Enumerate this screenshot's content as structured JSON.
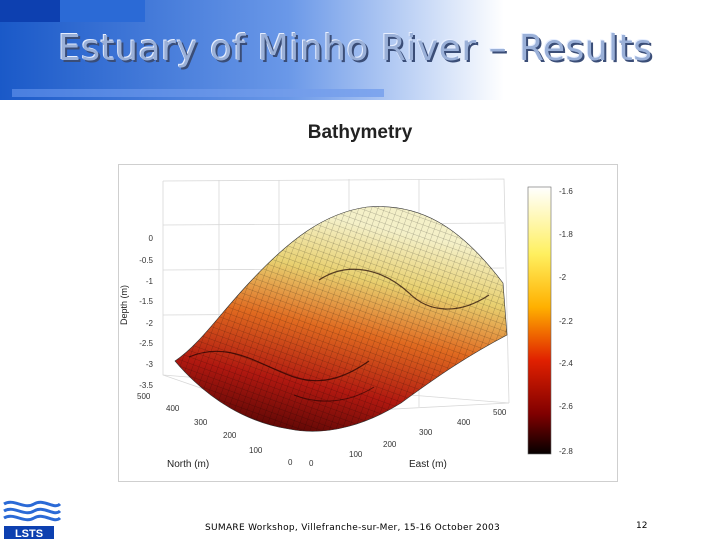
{
  "slide": {
    "title": "Estuary of Minho River – Results",
    "subtitle": "Bathymetry",
    "footer": "SUMARE Workshop, Villefranche-sur-Mer, 15-16 October 2003",
    "page_number": "12",
    "logo_text": "LSTS"
  },
  "chart_data": {
    "type": "surface",
    "zlabel": "Depth (m)",
    "xlabel": "North (m)",
    "ylabel": "East (m)",
    "z_ticks": [
      "0",
      "-0.5",
      "-1",
      "-1.5",
      "-2",
      "-2.5",
      "-3",
      "-3.5"
    ],
    "north_ticks": [
      "500",
      "400",
      "300",
      "200",
      "100",
      "0"
    ],
    "east_ticks": [
      "0",
      "100",
      "200",
      "300",
      "400",
      "500"
    ],
    "zlim": [
      -3.5,
      0
    ],
    "colorbar": {
      "ticks": [
        "-1.6",
        "-1.8",
        "-2",
        "-2.2",
        "-2.4",
        "-2.6",
        "-2.8"
      ],
      "range": [
        -2.8,
        -1.6
      ],
      "colormap": "hot"
    }
  }
}
